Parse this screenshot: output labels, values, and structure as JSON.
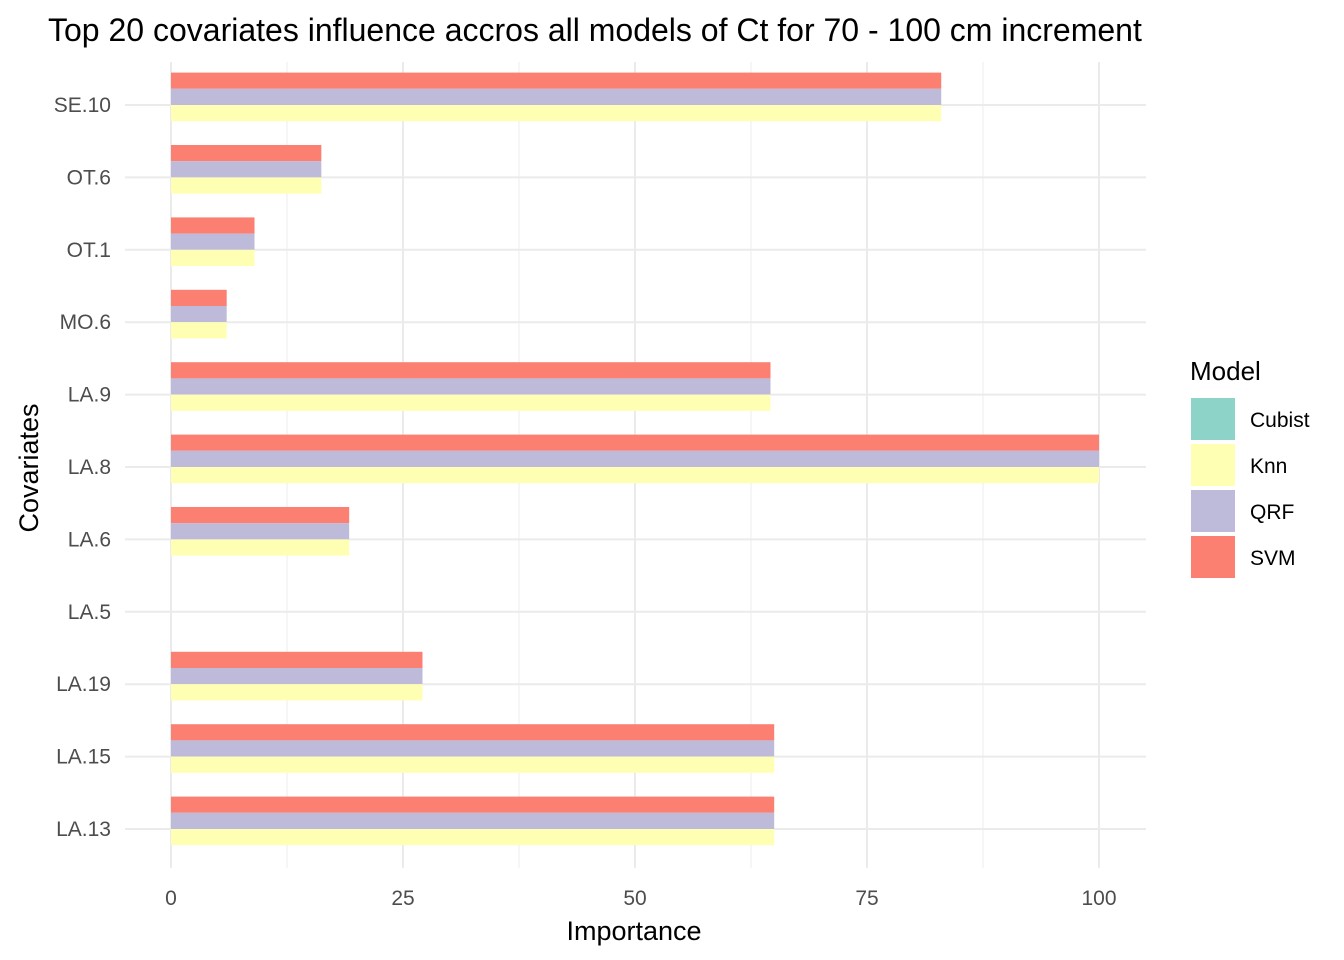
{
  "chart_data": {
    "type": "bar",
    "orientation": "horizontal",
    "title": "Top 20 covariates influence accros all models of Ct for 70 - 100 cm increment",
    "xlabel": "Importance",
    "ylabel": "Covariates",
    "categories": [
      "SE.10",
      "OT.6",
      "OT.1",
      "MO.6",
      "LA.9",
      "LA.8",
      "LA.6",
      "LA.5",
      "LA.19",
      "LA.15",
      "LA.13"
    ],
    "xlim": [
      0,
      100
    ],
    "xticks": [
      0,
      25,
      50,
      75,
      100
    ],
    "grid": true,
    "legend": {
      "title": "Model",
      "position": "right"
    },
    "series": [
      {
        "name": "Cubist",
        "color": "#8DD3C7",
        "values": [
          0,
          0,
          0,
          0,
          0,
          0,
          0,
          0,
          0,
          0,
          0
        ]
      },
      {
        "name": "Knn",
        "color": "#FFFFB3",
        "values": [
          83,
          16.2,
          9,
          6,
          64.6,
          100,
          19.2,
          0,
          27.1,
          65,
          65
        ]
      },
      {
        "name": "QRF",
        "color": "#BEBADA",
        "values": [
          83,
          16.2,
          9,
          6,
          64.6,
          100,
          19.2,
          0,
          27.1,
          65,
          65
        ]
      },
      {
        "name": "SVM",
        "color": "#FB8072",
        "values": [
          83,
          16.2,
          9,
          6,
          64.6,
          100,
          19.2,
          0,
          27.1,
          65,
          65
        ]
      }
    ]
  }
}
